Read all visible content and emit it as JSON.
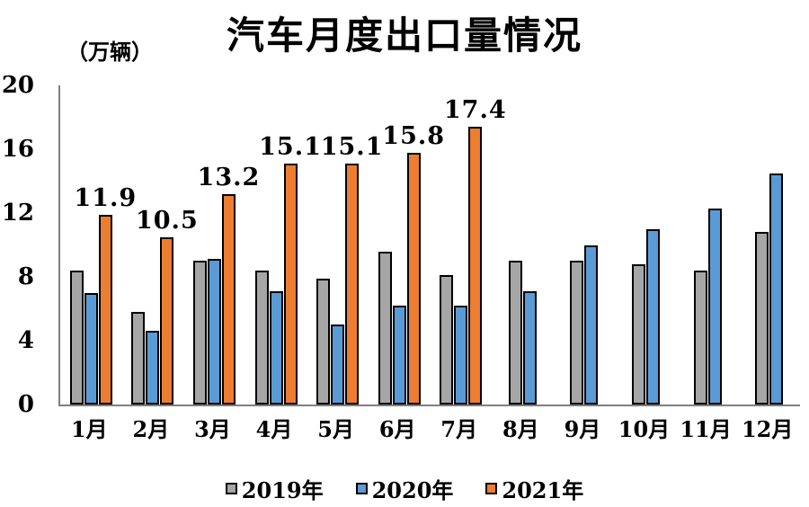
{
  "title": "汽车月度出口量情况",
  "unit_label": "（万辆）",
  "colors": {
    "series_2019": "#A6A6A6",
    "series_2020": "#5B9BD5",
    "series_2021": "#ED7D31",
    "bar_outline": "#000000",
    "axis_line": "#7F7F7F",
    "text": "#000000",
    "background": "#FFFFFF"
  },
  "y_axis": {
    "ticks": [
      20,
      16,
      12,
      8,
      4,
      0
    ]
  },
  "chart_data": {
    "type": "bar",
    "title": "汽车月度出口量情况",
    "ylabel": "（万辆）",
    "xlabel": "",
    "ylim": [
      0,
      20
    ],
    "grid": false,
    "legend_position": "bottom",
    "categories": [
      "1月",
      "2月",
      "3月",
      "4月",
      "5月",
      "6月",
      "7月",
      "8月",
      "9月",
      "10月",
      "11月",
      "12月"
    ],
    "series": [
      {
        "name": "2019年",
        "color": "#A6A6A6",
        "values": [
          8.4,
          5.8,
          9.0,
          8.4,
          7.9,
          9.6,
          8.1,
          9.0,
          9.0,
          8.8,
          8.4,
          10.8
        ],
        "data_labels": false
      },
      {
        "name": "2020年",
        "color": "#5B9BD5",
        "values": [
          7.0,
          4.6,
          9.1,
          7.1,
          5.0,
          6.2,
          6.2,
          7.1,
          10.0,
          11.0,
          12.3,
          14.5
        ],
        "data_labels": false
      },
      {
        "name": "2021年",
        "color": "#ED7D31",
        "values": [
          11.9,
          10.5,
          13.2,
          15.1,
          15.1,
          15.8,
          17.4,
          null,
          null,
          null,
          null,
          null
        ],
        "data_labels": true,
        "labels": [
          "11.9",
          "10.5",
          "13.2",
          "15.1",
          "15.1",
          "15.8",
          "17.4",
          null,
          null,
          null,
          null,
          null
        ]
      }
    ]
  }
}
